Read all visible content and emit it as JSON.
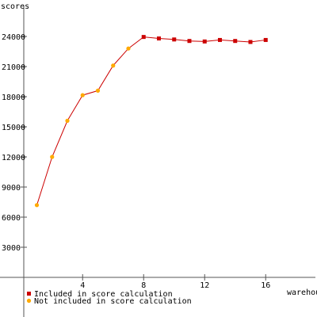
{
  "chart_data": {
    "type": "line",
    "ylabel": "scores",
    "xlabel": "warehouses",
    "xlim": [
      0,
      18
    ],
    "ylim": [
      0,
      27000
    ],
    "x_ticks": [
      4,
      8,
      12,
      16
    ],
    "y_ticks": [
      3000,
      6000,
      9000,
      12000,
      15000,
      18000,
      21000,
      24000
    ],
    "x_tick_labels": [
      "4",
      "8",
      "12",
      "16"
    ],
    "y_tick_labels": [
      "3000",
      "6000",
      "9000",
      "12000",
      "15000",
      "18000",
      "21000",
      "24000"
    ],
    "grid": false,
    "line_color": "#cc0000",
    "series": [
      {
        "name": "Included in score calculation",
        "color": "#cc0000",
        "marker": "square",
        "points": [
          {
            "x": 8,
            "y": 23950
          },
          {
            "x": 9,
            "y": 23800
          },
          {
            "x": 10,
            "y": 23700
          },
          {
            "x": 11,
            "y": 23550
          },
          {
            "x": 12,
            "y": 23500
          },
          {
            "x": 13,
            "y": 23650
          },
          {
            "x": 14,
            "y": 23550
          },
          {
            "x": 15,
            "y": 23450
          },
          {
            "x": 16,
            "y": 23650
          }
        ]
      },
      {
        "name": "Not included in score calculation",
        "color": "#ffaa00",
        "marker": "circle",
        "points": [
          {
            "x": 1,
            "y": 7200
          },
          {
            "x": 2,
            "y": 12000
          },
          {
            "x": 3,
            "y": 15600
          },
          {
            "x": 4,
            "y": 18150
          },
          {
            "x": 5,
            "y": 18600
          },
          {
            "x": 6,
            "y": 21100
          },
          {
            "x": 7,
            "y": 22800
          }
        ]
      }
    ],
    "legend": {
      "position": "bottom-left",
      "items": [
        {
          "label": "Included in score calculation",
          "color": "#cc0000"
        },
        {
          "label": "Not included in score calculation",
          "color": "#ffaa00"
        }
      ]
    }
  }
}
